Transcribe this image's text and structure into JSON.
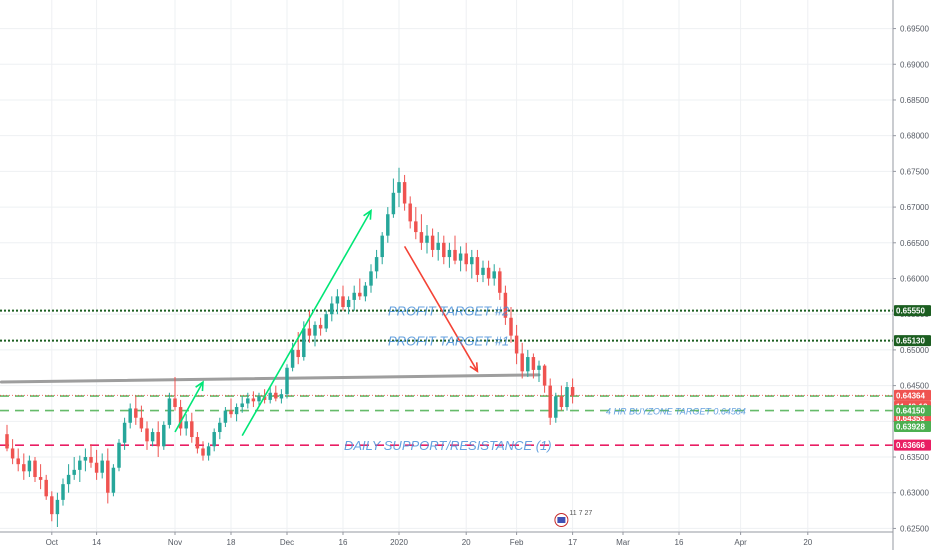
{
  "chart_data": {
    "type": "candlestick",
    "title": "",
    "xlabel": "",
    "ylabel": "",
    "ylim": [
      0.6245,
      0.699
    ],
    "grid": true,
    "y_ticks": [
      0.695,
      0.69,
      0.685,
      0.68,
      0.675,
      0.67,
      0.665,
      0.66,
      0.655,
      0.65,
      0.645,
      0.64,
      0.635,
      0.63,
      0.625
    ],
    "y_tick_labels": [
      "0.69500",
      "0.69000",
      "0.68500",
      "0.68000",
      "0.67500",
      "0.67000",
      "0.66500",
      "0.66000",
      "0.65500",
      "0.65000",
      "0.64500",
      "0.64000",
      "0.63500",
      "0.63000",
      "0.62500"
    ],
    "x_ticks": [
      {
        "i": 8,
        "label": "Oct"
      },
      {
        "i": 16,
        "label": "14"
      },
      {
        "i": 30,
        "label": "Nov"
      },
      {
        "i": 40,
        "label": "18"
      },
      {
        "i": 50,
        "label": "Dec"
      },
      {
        "i": 60,
        "label": "16"
      },
      {
        "i": 70,
        "label": "2020"
      },
      {
        "i": 82,
        "label": "20"
      },
      {
        "i": 91,
        "label": "Feb"
      },
      {
        "i": 101,
        "label": "17"
      },
      {
        "i": 110,
        "label": "Mar"
      },
      {
        "i": 120,
        "label": "16"
      },
      {
        "i": 131,
        "label": "Apr"
      },
      {
        "i": 143,
        "label": "20"
      }
    ],
    "bar_index_range": [
      0,
      150
    ],
    "candles": [
      [
        0.6382,
        0.6395,
        0.6358,
        0.6362
      ],
      [
        0.6362,
        0.6375,
        0.634,
        0.6348
      ],
      [
        0.6348,
        0.6362,
        0.633,
        0.634
      ],
      [
        0.634,
        0.6355,
        0.6318,
        0.633
      ],
      [
        0.633,
        0.6352,
        0.6322,
        0.6345
      ],
      [
        0.6345,
        0.635,
        0.6315,
        0.6322
      ],
      [
        0.6322,
        0.634,
        0.6305,
        0.6318
      ],
      [
        0.6318,
        0.6325,
        0.629,
        0.6295
      ],
      [
        0.6295,
        0.6302,
        0.626,
        0.627
      ],
      [
        0.627,
        0.63,
        0.6252,
        0.629
      ],
      [
        0.629,
        0.632,
        0.6282,
        0.6312
      ],
      [
        0.6312,
        0.634,
        0.63,
        0.6325
      ],
      [
        0.6325,
        0.635,
        0.6318,
        0.6332
      ],
      [
        0.6332,
        0.6352,
        0.6315,
        0.6345
      ],
      [
        0.6345,
        0.6362,
        0.633,
        0.635
      ],
      [
        0.635,
        0.6368,
        0.6335,
        0.6342
      ],
      [
        0.6342,
        0.636,
        0.6318,
        0.6328
      ],
      [
        0.6328,
        0.6355,
        0.632,
        0.6345
      ],
      [
        0.6345,
        0.6362,
        0.6285,
        0.63
      ],
      [
        0.63,
        0.634,
        0.6295,
        0.6335
      ],
      [
        0.6335,
        0.6375,
        0.633,
        0.637
      ],
      [
        0.637,
        0.6405,
        0.636,
        0.6398
      ],
      [
        0.6398,
        0.6425,
        0.639,
        0.6418
      ],
      [
        0.6418,
        0.6435,
        0.6395,
        0.6405
      ],
      [
        0.6405,
        0.6422,
        0.6385,
        0.639
      ],
      [
        0.639,
        0.64,
        0.636,
        0.6372
      ],
      [
        0.6372,
        0.639,
        0.6365,
        0.6385
      ],
      [
        0.6385,
        0.64,
        0.635,
        0.6365
      ],
      [
        0.6365,
        0.64,
        0.636,
        0.6395
      ],
      [
        0.6395,
        0.644,
        0.639,
        0.6432
      ],
      [
        0.6432,
        0.6462,
        0.6415,
        0.642
      ],
      [
        0.642,
        0.643,
        0.638,
        0.639
      ],
      [
        0.639,
        0.641,
        0.638,
        0.64
      ],
      [
        0.64,
        0.6412,
        0.637,
        0.6378
      ],
      [
        0.6378,
        0.6385,
        0.6355,
        0.6362
      ],
      [
        0.6362,
        0.6372,
        0.6345,
        0.6352
      ],
      [
        0.6352,
        0.637,
        0.6345,
        0.6365
      ],
      [
        0.6365,
        0.639,
        0.6358,
        0.6385
      ],
      [
        0.6385,
        0.6405,
        0.6375,
        0.6398
      ],
      [
        0.6398,
        0.642,
        0.6392,
        0.6415
      ],
      [
        0.6415,
        0.6432,
        0.6405,
        0.641
      ],
      [
        0.641,
        0.6425,
        0.64,
        0.642
      ],
      [
        0.642,
        0.6435,
        0.6412,
        0.6425
      ],
      [
        0.6425,
        0.644,
        0.6418,
        0.6432
      ],
      [
        0.6432,
        0.6442,
        0.642,
        0.6428
      ],
      [
        0.6428,
        0.644,
        0.642,
        0.6435
      ],
      [
        0.6435,
        0.6445,
        0.6425,
        0.643
      ],
      [
        0.643,
        0.6448,
        0.6425,
        0.644
      ],
      [
        0.644,
        0.645,
        0.6428,
        0.6432
      ],
      [
        0.6432,
        0.6445,
        0.6425,
        0.6438
      ],
      [
        0.6438,
        0.648,
        0.6432,
        0.6475
      ],
      [
        0.6475,
        0.651,
        0.647,
        0.65
      ],
      [
        0.65,
        0.6525,
        0.648,
        0.649
      ],
      [
        0.649,
        0.654,
        0.6485,
        0.653
      ],
      [
        0.653,
        0.6555,
        0.651,
        0.652
      ],
      [
        0.652,
        0.654,
        0.6505,
        0.6535
      ],
      [
        0.6535,
        0.6545,
        0.652,
        0.653
      ],
      [
        0.653,
        0.6555,
        0.6525,
        0.655
      ],
      [
        0.655,
        0.6575,
        0.654,
        0.6565
      ],
      [
        0.6565,
        0.6585,
        0.655,
        0.6575
      ],
      [
        0.6575,
        0.659,
        0.6555,
        0.656
      ],
      [
        0.656,
        0.6575,
        0.655,
        0.657
      ],
      [
        0.657,
        0.659,
        0.6555,
        0.658
      ],
      [
        0.658,
        0.66,
        0.657,
        0.6575
      ],
      [
        0.6575,
        0.6595,
        0.6568,
        0.659
      ],
      [
        0.659,
        0.662,
        0.658,
        0.661
      ],
      [
        0.661,
        0.664,
        0.66,
        0.663
      ],
      [
        0.663,
        0.6665,
        0.662,
        0.666
      ],
      [
        0.666,
        0.67,
        0.665,
        0.669
      ],
      [
        0.669,
        0.674,
        0.6685,
        0.672
      ],
      [
        0.672,
        0.6755,
        0.67,
        0.6735
      ],
      [
        0.6735,
        0.6745,
        0.6695,
        0.6705
      ],
      [
        0.6705,
        0.6715,
        0.667,
        0.668
      ],
      [
        0.668,
        0.67,
        0.6655,
        0.6665
      ],
      [
        0.6665,
        0.669,
        0.664,
        0.665
      ],
      [
        0.665,
        0.6675,
        0.6635,
        0.666
      ],
      [
        0.666,
        0.667,
        0.663,
        0.664
      ],
      [
        0.664,
        0.6665,
        0.6625,
        0.665
      ],
      [
        0.665,
        0.666,
        0.662,
        0.663
      ],
      [
        0.663,
        0.665,
        0.6615,
        0.664
      ],
      [
        0.664,
        0.666,
        0.662,
        0.6625
      ],
      [
        0.6625,
        0.6645,
        0.661,
        0.6635
      ],
      [
        0.6635,
        0.665,
        0.661,
        0.662
      ],
      [
        0.662,
        0.664,
        0.66,
        0.663
      ],
      [
        0.663,
        0.664,
        0.6595,
        0.6605
      ],
      [
        0.6605,
        0.6625,
        0.6595,
        0.6615
      ],
      [
        0.6615,
        0.6625,
        0.659,
        0.66
      ],
      [
        0.66,
        0.662,
        0.659,
        0.661
      ],
      [
        0.661,
        0.6615,
        0.657,
        0.658
      ],
      [
        0.658,
        0.659,
        0.6535,
        0.6545
      ],
      [
        0.6545,
        0.656,
        0.651,
        0.652
      ],
      [
        0.652,
        0.6535,
        0.648,
        0.6495
      ],
      [
        0.6495,
        0.651,
        0.646,
        0.647
      ],
      [
        0.647,
        0.65,
        0.6462,
        0.649
      ],
      [
        0.649,
        0.6495,
        0.646,
        0.6472
      ],
      [
        0.6472,
        0.6485,
        0.6455,
        0.6478
      ],
      [
        0.6478,
        0.648,
        0.644,
        0.645
      ],
      [
        0.645,
        0.646,
        0.6395,
        0.6405
      ],
      [
        0.6405,
        0.644,
        0.6398,
        0.6435
      ],
      [
        0.6435,
        0.645,
        0.6415,
        0.642
      ],
      [
        0.642,
        0.6455,
        0.6415,
        0.6448
      ],
      [
        0.6448,
        0.646,
        0.6425,
        0.6436
      ]
    ],
    "colors": {
      "up": "#26a69a",
      "down": "#ef5350"
    },
    "horizontal_levels": [
      {
        "name": "PROFIT TARGET #2",
        "price": 0.6555,
        "color": "#1b5e20",
        "style": "dotted"
      },
      {
        "name": "PROFIT TARGET #1",
        "price": 0.6513,
        "color": "#1b5e20",
        "style": "dotted"
      },
      {
        "name": "4 HR BUYZONE  TARGET 0.64584",
        "price": 0.6415,
        "color": "#66bb6a",
        "style": "dashed"
      },
      {
        "name": "",
        "price": 0.64353,
        "color": "#66bb6a",
        "style": "dashed"
      },
      {
        "name": "DAILY SUPPORT/RESISTANCE (1)",
        "price": 0.63666,
        "color": "#e91e63",
        "style": "dashed"
      }
    ],
    "price_badges": [
      {
        "label": "0.65550",
        "price": 0.6555,
        "bg": "#1b5e20",
        "fg": "#ffffff"
      },
      {
        "label": "0.65130",
        "price": 0.6513,
        "bg": "#1b5e20",
        "fg": "#ffffff"
      },
      {
        "label": "0.64364",
        "price": 0.64364,
        "bg": "#ef5350",
        "fg": "#ffffff"
      },
      {
        "label": "11:49:19",
        "price": 0.64364,
        "bg": "#ef5350",
        "fg": "#ffffff",
        "offset": 1
      },
      {
        "label": "0.64353",
        "price": 0.64353,
        "bg": "#ef5350",
        "fg": "#ffffff",
        "offset": 2
      },
      {
        "label": "0.64150",
        "price": 0.6415,
        "bg": "#4caf50",
        "fg": "#ffffff"
      },
      {
        "label": "0.63928",
        "price": 0.63928,
        "bg": "#4caf50",
        "fg": "#ffffff"
      },
      {
        "label": "0.63666",
        "price": 0.63666,
        "bg": "#e91e63",
        "fg": "#ffffff"
      }
    ],
    "trendline": {
      "from": {
        "i": -1,
        "price": 0.6455
      },
      "to": {
        "i": 95,
        "price": 0.6465
      },
      "color": "#9e9e9e"
    },
    "arrows": [
      {
        "from": {
          "i": 30,
          "price": 0.6385
        },
        "to": {
          "i": 35,
          "price": 0.6455
        },
        "color": "#00e676"
      },
      {
        "from": {
          "i": 42,
          "price": 0.638
        },
        "to": {
          "i": 65,
          "price": 0.6695
        },
        "color": "#00e676"
      },
      {
        "from": {
          "i": 71,
          "price": 0.6645
        },
        "to": {
          "i": 84,
          "price": 0.647
        },
        "color": "#f44336"
      }
    ],
    "event_marker": {
      "label": "11 7 27",
      "i": 99
    }
  }
}
